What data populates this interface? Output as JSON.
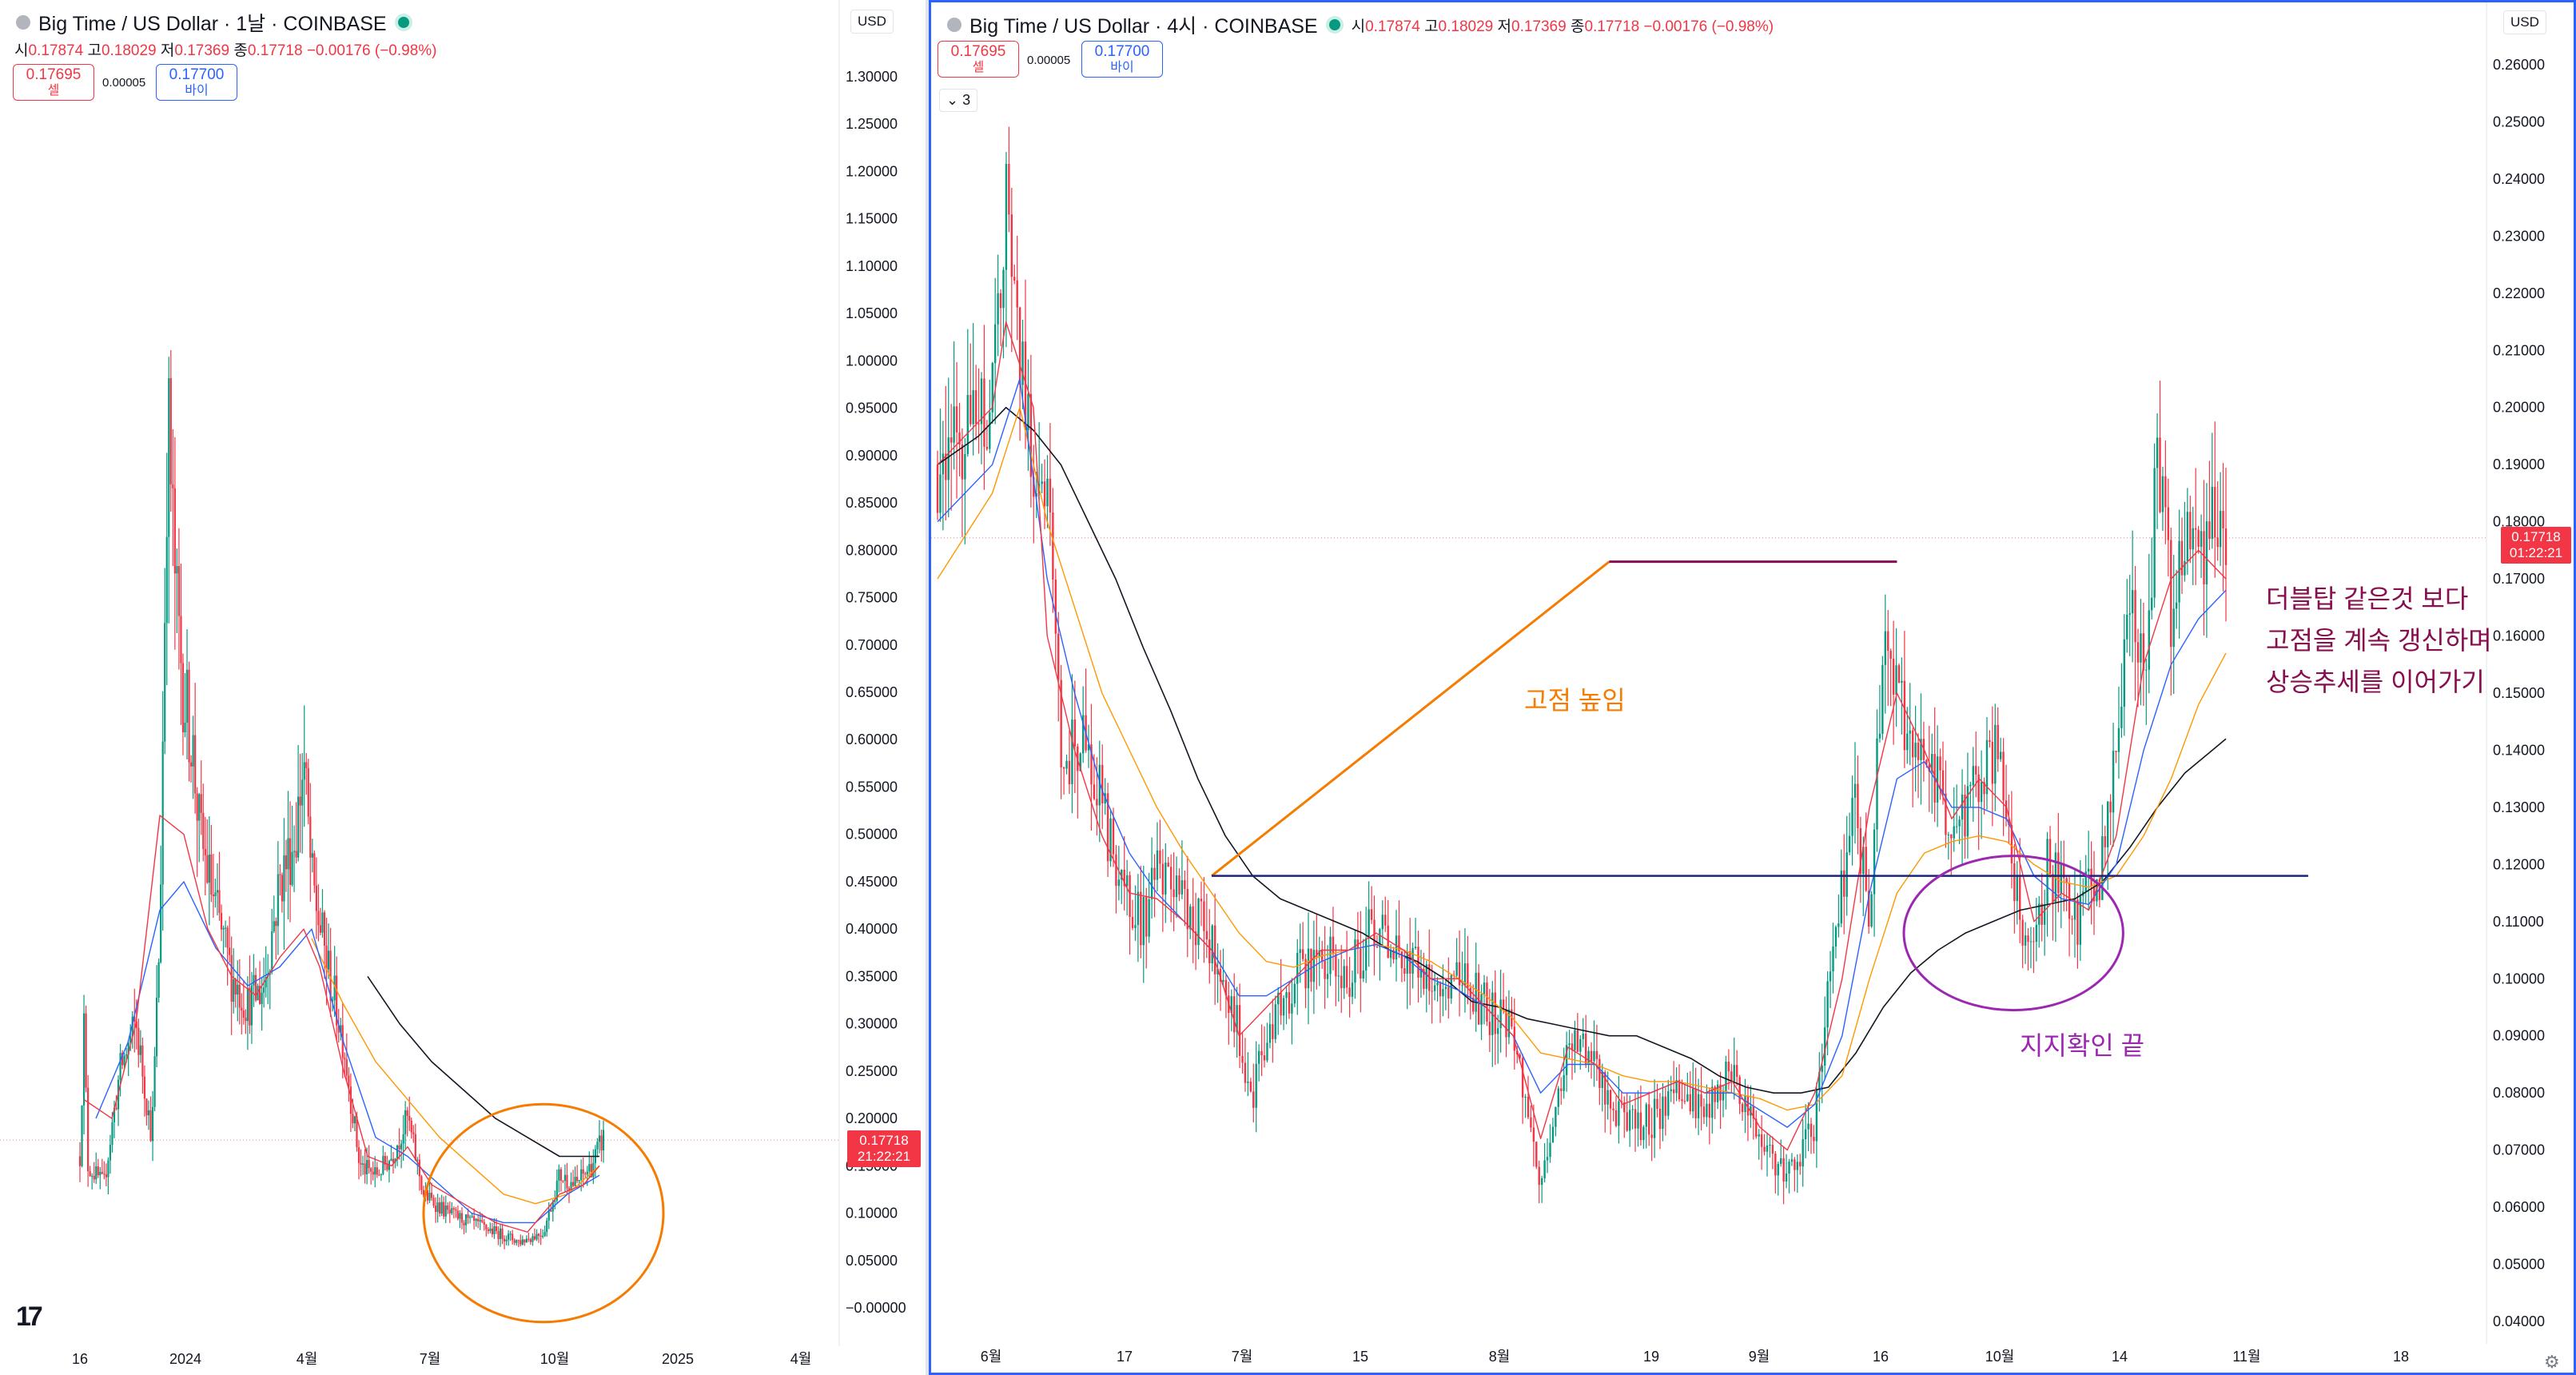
{
  "left": {
    "title": "Big Time / US Dollar · 1날 · COINBASE",
    "ohlc": {
      "o_label": "시",
      "o": "0.17874",
      "h_label": "고",
      "h": "0.18029",
      "l_label": "저",
      "l": "0.17369",
      "c_label": "종",
      "c": "0.17718",
      "chg": "−0.00176 (−0.98%)"
    },
    "sell": {
      "price": "0.17695",
      "label": "셀"
    },
    "buy": {
      "price": "0.17700",
      "label": "바이"
    },
    "spread": "0.00005",
    "currency": "USD",
    "price_tag": {
      "price": "0.17718",
      "time": "21:22:21"
    },
    "logo": "17"
  },
  "right": {
    "title": "Big Time / US Dollar · 4시 · COINBASE",
    "ohlc": {
      "o_label": "시",
      "o": "0.17874",
      "h_label": "고",
      "h": "0.18029",
      "l_label": "저",
      "l": "0.17369",
      "c_label": "종",
      "c": "0.17718",
      "chg": "−0.00176 (−0.98%)"
    },
    "sell": {
      "price": "0.17695",
      "label": "셀"
    },
    "buy": {
      "price": "0.17700",
      "label": "바이"
    },
    "spread": "0.00005",
    "currency": "USD",
    "indicator_toggle": "3",
    "price_tag": {
      "price": "0.17718",
      "time": "01:22:21"
    },
    "annotations": {
      "higher_high": "고점 높임",
      "support": "지지확인 끝",
      "note_line1": "더블탑 같은것 보다",
      "note_line2": "고점을 계속 갱신하며",
      "note_line3": "상승추세를 이어가기"
    }
  },
  "colors": {
    "up": "#089981",
    "down": "#f23645",
    "ma_fast": "#f23645",
    "ma_mid": "#2962ff",
    "ma_slow": "#ff9800",
    "ma_long": "#131722",
    "orange": "#f57c00",
    "purple": "#9c27b0",
    "navy": "#1a237e",
    "maroon": "#880e4f"
  },
  "chart_data": [
    {
      "type": "candlestick",
      "title": "Big Time / US Dollar · 1날 · COINBASE",
      "x_ticks": [
        "16",
        "2024",
        "4월",
        "7월",
        "10월",
        "2025",
        "4월"
      ],
      "y_ticks": [
        "1.30000",
        "1.25000",
        "1.20000",
        "1.15000",
        "1.10000",
        "1.05000",
        "1.00000",
        "0.95000",
        "0.90000",
        "0.85000",
        "0.80000",
        "0.75000",
        "0.70000",
        "0.65000",
        "0.60000",
        "0.55000",
        "0.50000",
        "0.45000",
        "0.40000",
        "0.35000",
        "0.30000",
        "0.25000",
        "0.20000",
        "0.15000",
        "0.10000",
        "0.05000",
        "−0.00000"
      ],
      "ylim": [
        -0.01,
        1.33
      ],
      "xlim": [
        0,
        100
      ],
      "last_price": 0.17718,
      "ma_fast": [
        [
          4.5,
          0.22
        ],
        [
          8,
          0.2
        ],
        [
          11,
          0.3
        ],
        [
          14,
          0.52
        ],
        [
          17,
          0.5
        ],
        [
          20,
          0.4
        ],
        [
          23,
          0.35
        ],
        [
          26,
          0.33
        ],
        [
          29,
          0.37
        ],
        [
          32,
          0.4
        ],
        [
          34,
          0.36
        ],
        [
          37,
          0.25
        ],
        [
          40,
          0.16
        ],
        [
          43,
          0.15
        ],
        [
          45,
          0.17
        ],
        [
          48,
          0.13
        ],
        [
          52,
          0.11
        ],
        [
          56,
          0.09
        ],
        [
          60,
          0.08
        ],
        [
          64,
          0.12
        ],
        [
          67,
          0.13
        ],
        [
          69,
          0.15
        ]
      ],
      "ma_mid": [
        [
          6,
          0.2
        ],
        [
          10,
          0.28
        ],
        [
          14,
          0.42
        ],
        [
          17,
          0.45
        ],
        [
          21,
          0.38
        ],
        [
          25,
          0.34
        ],
        [
          29,
          0.36
        ],
        [
          33,
          0.4
        ],
        [
          37,
          0.28
        ],
        [
          41,
          0.18
        ],
        [
          45,
          0.16
        ],
        [
          49,
          0.13
        ],
        [
          53,
          0.1
        ],
        [
          57,
          0.09
        ],
        [
          61,
          0.09
        ],
        [
          65,
          0.12
        ],
        [
          69,
          0.14
        ]
      ],
      "ma_slow": [
        [
          33,
          0.39
        ],
        [
          37,
          0.32
        ],
        [
          41,
          0.26
        ],
        [
          45,
          0.22
        ],
        [
          49,
          0.18
        ],
        [
          53,
          0.15
        ],
        [
          57,
          0.12
        ],
        [
          61,
          0.11
        ],
        [
          65,
          0.12
        ],
        [
          69,
          0.15
        ]
      ],
      "ma_long": [
        [
          40,
          0.35
        ],
        [
          44,
          0.3
        ],
        [
          48,
          0.26
        ],
        [
          52,
          0.23
        ],
        [
          56,
          0.2
        ],
        [
          60,
          0.18
        ],
        [
          64,
          0.16
        ],
        [
          69,
          0.16
        ]
      ],
      "circle_annotation": {
        "cx": 62,
        "cy": 0.1,
        "rx": 15,
        "ry": 0.115
      }
    },
    {
      "type": "candlestick",
      "title": "Big Time / US Dollar · 4시 · COINBASE",
      "x_ticks": [
        "6월",
        "17",
        "7월",
        "15",
        "8월",
        "19",
        "9월",
        "16",
        "10월",
        "14",
        "11월",
        "18"
      ],
      "y_ticks": [
        "0.26000",
        "0.25000",
        "0.24000",
        "0.23000",
        "0.22000",
        "0.21000",
        "0.20000",
        "0.19000",
        "0.18000",
        "0.17000",
        "0.16000",
        "0.15000",
        "0.14000",
        "0.13000",
        "0.12000",
        "0.11000",
        "0.10000",
        "0.09000",
        "0.08000",
        "0.07000",
        "0.06000",
        "0.05000",
        "0.04000"
      ],
      "ylim": [
        0.038,
        0.264
      ],
      "xlim": [
        0,
        100
      ],
      "last_price": 0.17718,
      "key_points": [
        [
          0,
          0.19
        ],
        [
          4,
          0.2
        ],
        [
          5,
          0.235
        ],
        [
          6,
          0.21
        ],
        [
          7,
          0.19
        ],
        [
          8,
          0.185
        ],
        [
          9,
          0.14
        ],
        [
          11,
          0.14
        ],
        [
          13,
          0.12
        ],
        [
          15,
          0.11
        ],
        [
          16,
          0.118
        ],
        [
          17,
          0.115
        ],
        [
          19,
          0.11
        ],
        [
          21,
          0.1
        ],
        [
          23,
          0.08
        ],
        [
          24,
          0.09
        ],
        [
          26,
          0.1
        ],
        [
          28,
          0.105
        ],
        [
          30,
          0.1
        ],
        [
          32,
          0.11
        ],
        [
          34,
          0.105
        ],
        [
          36,
          0.1
        ],
        [
          38,
          0.1
        ],
        [
          40,
          0.095
        ],
        [
          42,
          0.09
        ],
        [
          44,
          0.063
        ],
        [
          46,
          0.09
        ],
        [
          48,
          0.085
        ],
        [
          50,
          0.075
        ],
        [
          52,
          0.075
        ],
        [
          54,
          0.08
        ],
        [
          56,
          0.077
        ],
        [
          58,
          0.085
        ],
        [
          60,
          0.07
        ],
        [
          62,
          0.065
        ],
        [
          64,
          0.075
        ],
        [
          65,
          0.1
        ],
        [
          67,
          0.13
        ],
        [
          68,
          0.11
        ],
        [
          69,
          0.16
        ],
        [
          71,
          0.14
        ],
        [
          73,
          0.135
        ],
        [
          74,
          0.12
        ],
        [
          75,
          0.13
        ],
        [
          77,
          0.14
        ],
        [
          78,
          0.13
        ],
        [
          79,
          0.11
        ],
        [
          80,
          0.105
        ],
        [
          81,
          0.12
        ],
        [
          82,
          0.115
        ],
        [
          83,
          0.11
        ],
        [
          85,
          0.12
        ],
        [
          86,
          0.14
        ],
        [
          87,
          0.17
        ],
        [
          88,
          0.15
        ],
        [
          89,
          0.19
        ],
        [
          90,
          0.165
        ],
        [
          91,
          0.18
        ],
        [
          92,
          0.17
        ],
        [
          93,
          0.185
        ],
        [
          94,
          0.175
        ]
      ],
      "ma_fast": [
        [
          0,
          0.19
        ],
        [
          4,
          0.2
        ],
        [
          5,
          0.215
        ],
        [
          7,
          0.2
        ],
        [
          8,
          0.16
        ],
        [
          10,
          0.14
        ],
        [
          12,
          0.125
        ],
        [
          14,
          0.115
        ],
        [
          16,
          0.114
        ],
        [
          18,
          0.11
        ],
        [
          20,
          0.105
        ],
        [
          22,
          0.09
        ],
        [
          24,
          0.095
        ],
        [
          26,
          0.1
        ],
        [
          28,
          0.105
        ],
        [
          30,
          0.105
        ],
        [
          32,
          0.108
        ],
        [
          34,
          0.105
        ],
        [
          36,
          0.1
        ],
        [
          38,
          0.1
        ],
        [
          40,
          0.095
        ],
        [
          42,
          0.09
        ],
        [
          44,
          0.072
        ],
        [
          46,
          0.088
        ],
        [
          48,
          0.085
        ],
        [
          50,
          0.078
        ],
        [
          52,
          0.08
        ],
        [
          54,
          0.082
        ],
        [
          56,
          0.08
        ],
        [
          58,
          0.082
        ],
        [
          60,
          0.074
        ],
        [
          62,
          0.07
        ],
        [
          64,
          0.08
        ],
        [
          66,
          0.1
        ],
        [
          68,
          0.13
        ],
        [
          70,
          0.15
        ],
        [
          72,
          0.14
        ],
        [
          74,
          0.128
        ],
        [
          76,
          0.135
        ],
        [
          78,
          0.13
        ],
        [
          80,
          0.11
        ],
        [
          82,
          0.115
        ],
        [
          84,
          0.112
        ],
        [
          86,
          0.125
        ],
        [
          88,
          0.155
        ],
        [
          90,
          0.17
        ],
        [
          92,
          0.175
        ],
        [
          94,
          0.17
        ]
      ],
      "ma_mid": [
        [
          0,
          0.18
        ],
        [
          4,
          0.19
        ],
        [
          6,
          0.205
        ],
        [
          8,
          0.17
        ],
        [
          10,
          0.15
        ],
        [
          12,
          0.133
        ],
        [
          14,
          0.122
        ],
        [
          16,
          0.115
        ],
        [
          18,
          0.11
        ],
        [
          20,
          0.105
        ],
        [
          22,
          0.097
        ],
        [
          24,
          0.097
        ],
        [
          26,
          0.1
        ],
        [
          28,
          0.103
        ],
        [
          30,
          0.105
        ],
        [
          32,
          0.106
        ],
        [
          34,
          0.104
        ],
        [
          36,
          0.1
        ],
        [
          38,
          0.098
        ],
        [
          40,
          0.095
        ],
        [
          42,
          0.09
        ],
        [
          44,
          0.08
        ],
        [
          46,
          0.085
        ],
        [
          48,
          0.085
        ],
        [
          50,
          0.08
        ],
        [
          52,
          0.08
        ],
        [
          54,
          0.082
        ],
        [
          56,
          0.08
        ],
        [
          58,
          0.08
        ],
        [
          60,
          0.077
        ],
        [
          62,
          0.074
        ],
        [
          64,
          0.078
        ],
        [
          66,
          0.09
        ],
        [
          68,
          0.115
        ],
        [
          70,
          0.135
        ],
        [
          72,
          0.138
        ],
        [
          74,
          0.13
        ],
        [
          76,
          0.13
        ],
        [
          78,
          0.128
        ],
        [
          80,
          0.118
        ],
        [
          82,
          0.114
        ],
        [
          84,
          0.113
        ],
        [
          86,
          0.12
        ],
        [
          88,
          0.14
        ],
        [
          90,
          0.155
        ],
        [
          92,
          0.163
        ],
        [
          94,
          0.168
        ]
      ],
      "ma_slow": [
        [
          0,
          0.17
        ],
        [
          4,
          0.185
        ],
        [
          6,
          0.2
        ],
        [
          8,
          0.18
        ],
        [
          10,
          0.165
        ],
        [
          12,
          0.15
        ],
        [
          14,
          0.14
        ],
        [
          16,
          0.13
        ],
        [
          18,
          0.122
        ],
        [
          20,
          0.115
        ],
        [
          22,
          0.108
        ],
        [
          24,
          0.103
        ],
        [
          26,
          0.102
        ],
        [
          28,
          0.104
        ],
        [
          30,
          0.105
        ],
        [
          32,
          0.106
        ],
        [
          34,
          0.105
        ],
        [
          36,
          0.103
        ],
        [
          38,
          0.1
        ],
        [
          40,
          0.097
        ],
        [
          42,
          0.093
        ],
        [
          44,
          0.087
        ],
        [
          46,
          0.086
        ],
        [
          48,
          0.085
        ],
        [
          50,
          0.083
        ],
        [
          52,
          0.082
        ],
        [
          54,
          0.082
        ],
        [
          56,
          0.081
        ],
        [
          58,
          0.08
        ],
        [
          60,
          0.079
        ],
        [
          62,
          0.077
        ],
        [
          64,
          0.078
        ],
        [
          66,
          0.083
        ],
        [
          68,
          0.1
        ],
        [
          70,
          0.115
        ],
        [
          72,
          0.122
        ],
        [
          74,
          0.124
        ],
        [
          76,
          0.125
        ],
        [
          78,
          0.124
        ],
        [
          80,
          0.12
        ],
        [
          82,
          0.117
        ],
        [
          84,
          0.116
        ],
        [
          86,
          0.118
        ],
        [
          88,
          0.125
        ],
        [
          90,
          0.135
        ],
        [
          92,
          0.148
        ],
        [
          94,
          0.157
        ]
      ],
      "ma_long": [
        [
          0,
          0.19
        ],
        [
          3,
          0.195
        ],
        [
          5,
          0.2
        ],
        [
          7,
          0.196
        ],
        [
          9,
          0.19
        ],
        [
          11,
          0.18
        ],
        [
          13,
          0.17
        ],
        [
          15,
          0.158
        ],
        [
          17,
          0.147
        ],
        [
          19,
          0.135
        ],
        [
          21,
          0.125
        ],
        [
          23,
          0.118
        ],
        [
          25,
          0.114
        ],
        [
          27,
          0.112
        ],
        [
          29,
          0.11
        ],
        [
          31,
          0.108
        ],
        [
          33,
          0.105
        ],
        [
          35,
          0.103
        ],
        [
          37,
          0.1
        ],
        [
          39,
          0.096
        ],
        [
          41,
          0.095
        ],
        [
          43,
          0.093
        ],
        [
          45,
          0.092
        ],
        [
          47,
          0.091
        ],
        [
          49,
          0.09
        ],
        [
          51,
          0.09
        ],
        [
          53,
          0.088
        ],
        [
          55,
          0.086
        ],
        [
          57,
          0.083
        ],
        [
          59,
          0.081
        ],
        [
          61,
          0.08
        ],
        [
          63,
          0.08
        ],
        [
          65,
          0.081
        ],
        [
          67,
          0.087
        ],
        [
          69,
          0.095
        ],
        [
          71,
          0.101
        ],
        [
          73,
          0.105
        ],
        [
          75,
          0.108
        ],
        [
          77,
          0.11
        ],
        [
          79,
          0.112
        ],
        [
          81,
          0.113
        ],
        [
          83,
          0.114
        ],
        [
          85,
          0.117
        ],
        [
          87,
          0.123
        ],
        [
          89,
          0.13
        ],
        [
          91,
          0.136
        ],
        [
          93,
          0.14
        ],
        [
          94,
          0.142
        ]
      ],
      "trendline_orange": [
        [
          20,
          0.118
        ],
        [
          49,
          0.173
        ]
      ],
      "resistance_line": {
        "y": 0.173,
        "x": [
          49,
          70
        ]
      },
      "support_line": {
        "y": 0.118,
        "x": [
          20,
          100
        ]
      },
      "circle_annotation": {
        "cx": 78.5,
        "cy": 0.108,
        "rx": 8,
        "ry": 0.0135
      }
    }
  ]
}
